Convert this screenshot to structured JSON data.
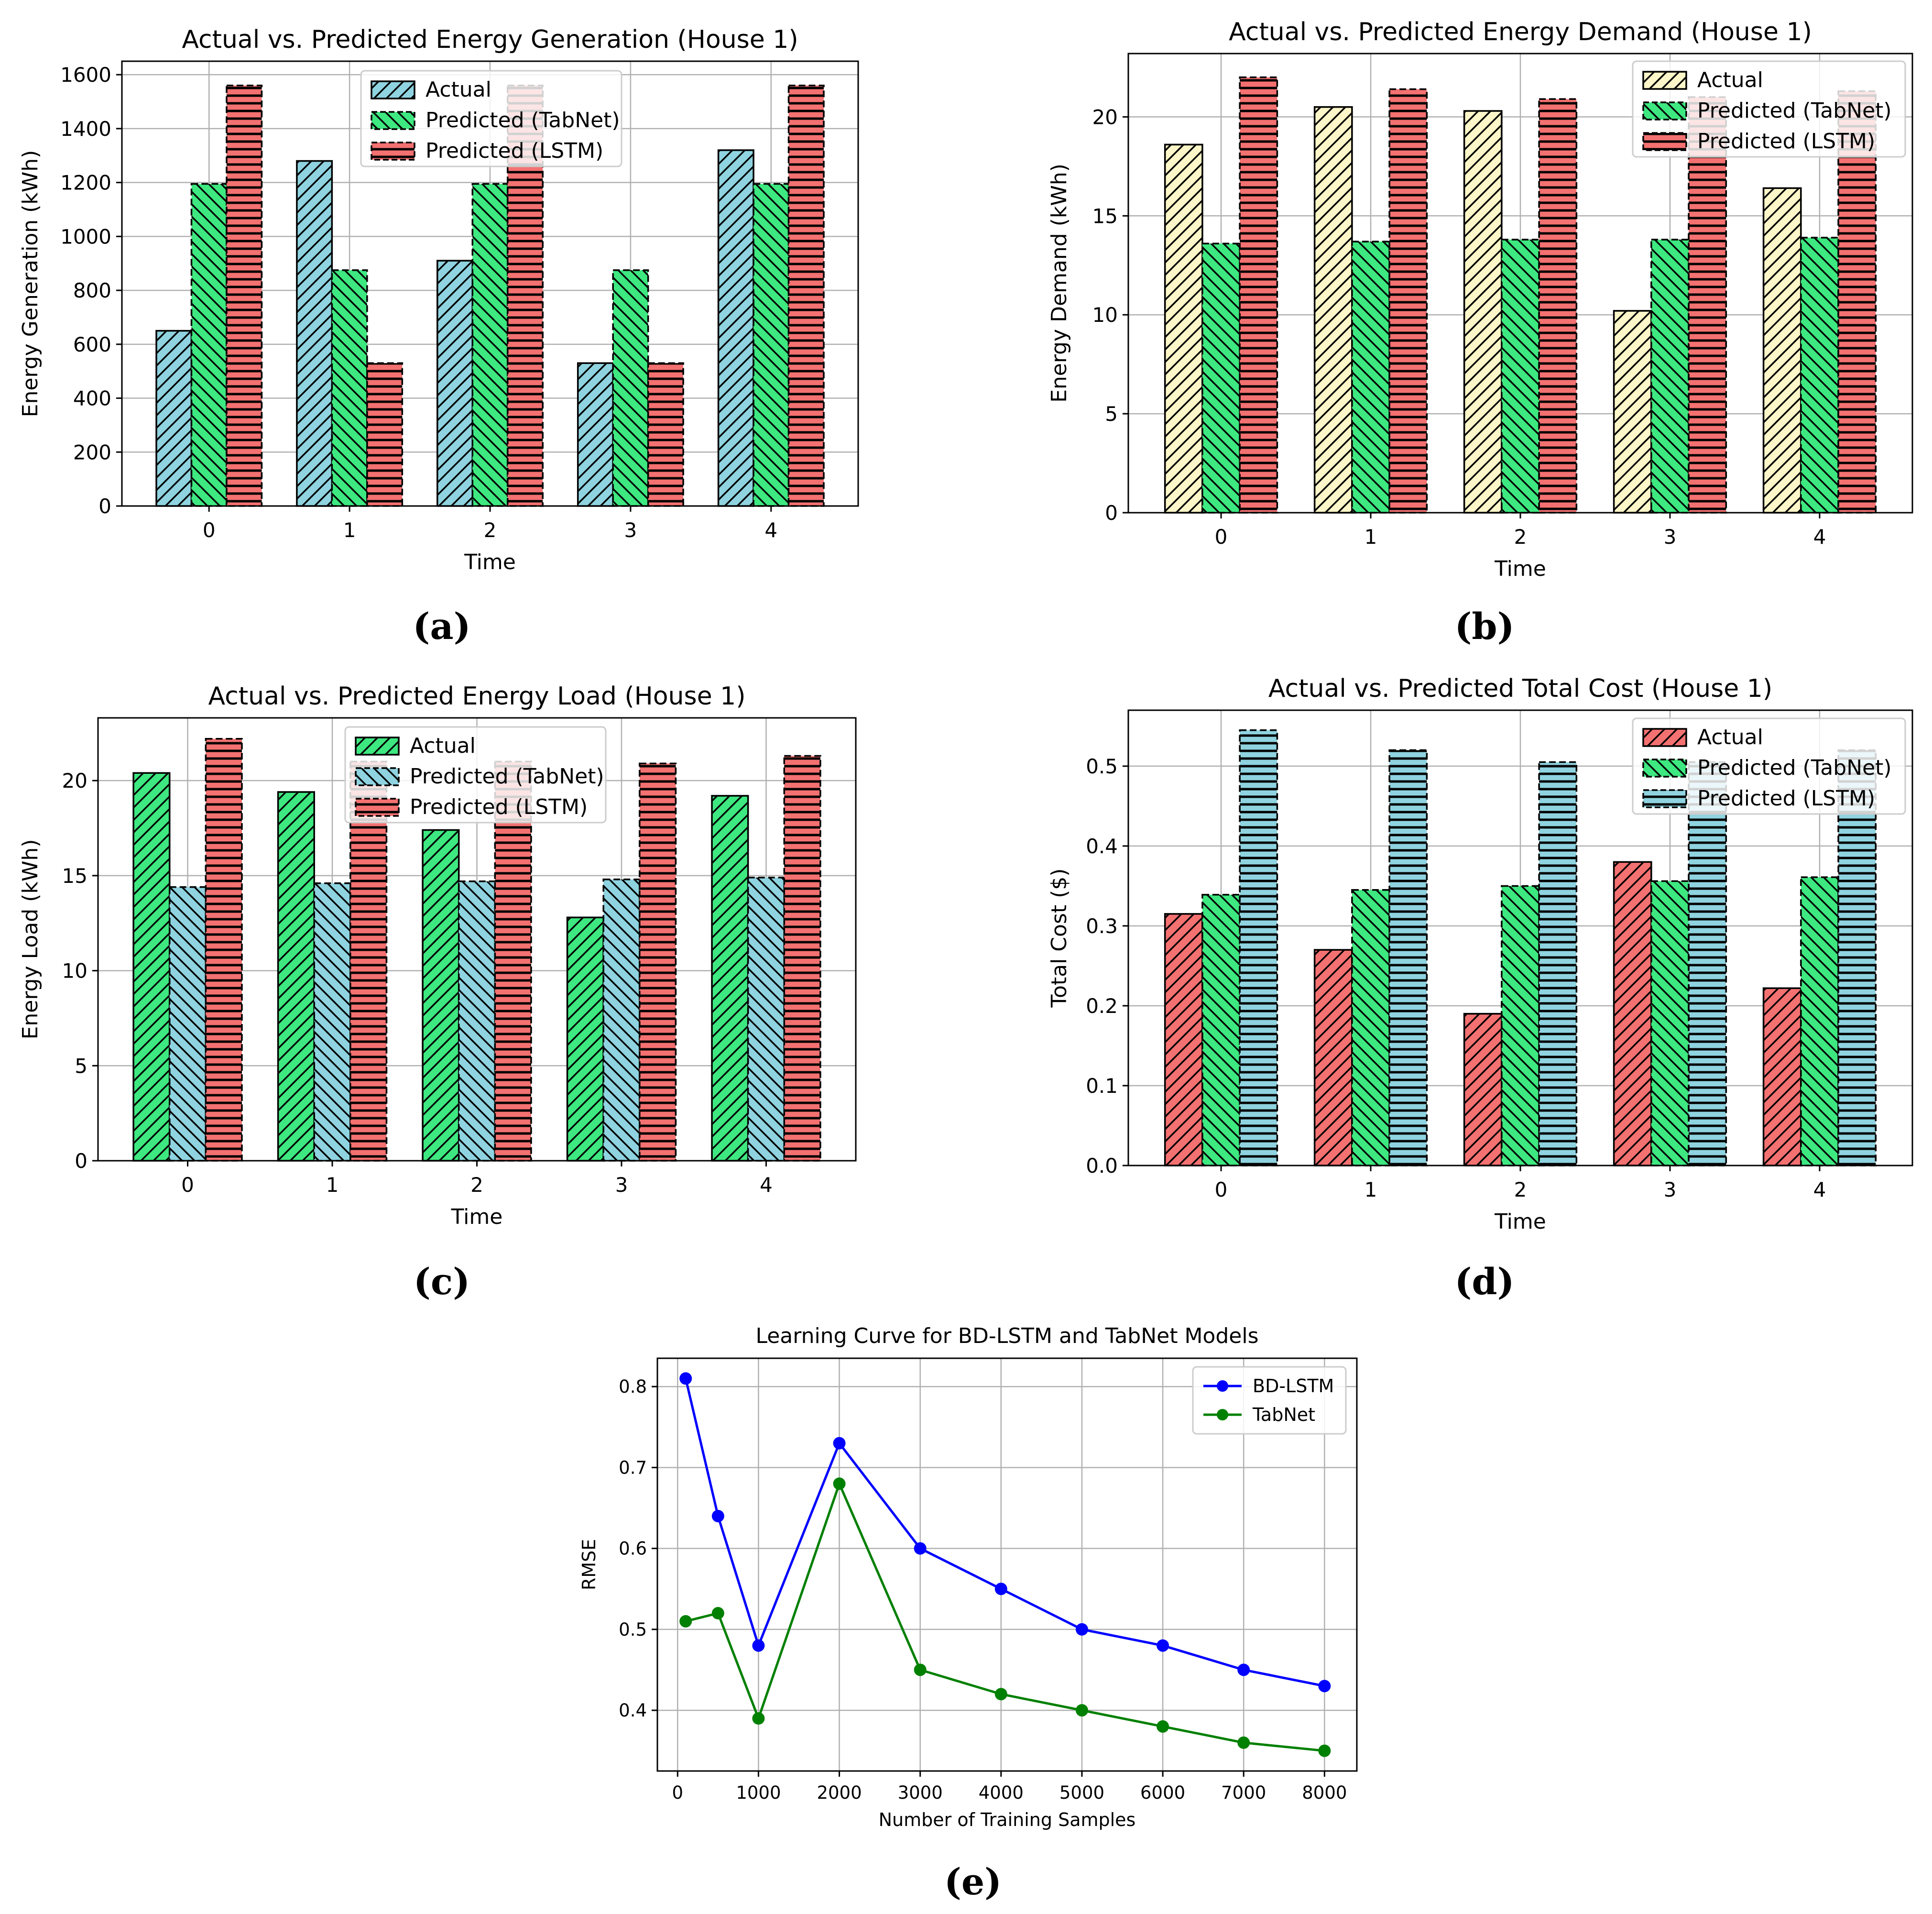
{
  "colors": {
    "sky": "#8fd3e0",
    "green": "#3ee880",
    "red": "#f47171",
    "cream": "#fdf6c8",
    "blue": "#0000ff",
    "darkgreen": "#008000"
  },
  "captions": [
    "(a)",
    "(b)",
    "(c)",
    "(d)",
    "(e)"
  ],
  "chart_data": [
    {
      "type": "bar",
      "title": "Actual vs. Predicted Energy Generation (House 1)",
      "xlabel": "Time",
      "ylabel": "Energy Generation (kWh)",
      "categories": [
        "0",
        "1",
        "2",
        "3",
        "4"
      ],
      "ylim": [
        0,
        1650
      ],
      "yticks": [
        0,
        200,
        400,
        600,
        800,
        1000,
        1200,
        1400,
        1600
      ],
      "legend_position": "top-center",
      "grid": true,
      "series": [
        {
          "name": "Actual",
          "values": [
            650,
            1280,
            910,
            530,
            1320
          ],
          "color": "sky",
          "hatch": "diag-right",
          "dashed": false
        },
        {
          "name": "Predicted (TabNet)",
          "values": [
            1195,
            875,
            1195,
            875,
            1195
          ],
          "color": "green",
          "hatch": "diag-left",
          "dashed": true
        },
        {
          "name": "Predicted (LSTM)",
          "values": [
            1560,
            530,
            1560,
            530,
            1560
          ],
          "color": "red",
          "hatch": "horizontal",
          "dashed": true
        }
      ]
    },
    {
      "type": "bar",
      "title": "Actual vs. Predicted Energy Demand (House 1)",
      "xlabel": "Time",
      "ylabel": "Energy Demand (kWh)",
      "categories": [
        "0",
        "1",
        "2",
        "3",
        "4"
      ],
      "ylim": [
        0,
        23.2
      ],
      "yticks": [
        0,
        5,
        10,
        15,
        20
      ],
      "legend_position": "top-right",
      "grid": true,
      "series": [
        {
          "name": "Actual",
          "values": [
            18.6,
            20.5,
            20.3,
            10.2,
            16.4
          ],
          "color": "cream",
          "hatch": "diag-right",
          "dashed": false
        },
        {
          "name": "Predicted (TabNet)",
          "values": [
            13.6,
            13.7,
            13.8,
            13.8,
            13.9
          ],
          "color": "green",
          "hatch": "diag-left",
          "dashed": true
        },
        {
          "name": "Predicted (LSTM)",
          "values": [
            22.0,
            21.4,
            20.9,
            21.0,
            21.3
          ],
          "color": "red",
          "hatch": "horizontal",
          "dashed": true
        }
      ]
    },
    {
      "type": "bar",
      "title": "Actual vs. Predicted Energy Load (House 1)",
      "xlabel": "Time",
      "ylabel": "Energy Load (kWh)",
      "categories": [
        "0",
        "1",
        "2",
        "3",
        "4"
      ],
      "ylim": [
        0,
        23.3
      ],
      "yticks": [
        0,
        5,
        10,
        15,
        20
      ],
      "legend_position": "top-center",
      "grid": true,
      "series": [
        {
          "name": "Actual",
          "values": [
            20.4,
            19.4,
            17.4,
            12.8,
            19.2
          ],
          "color": "green",
          "hatch": "diag-right",
          "dashed": false
        },
        {
          "name": "Predicted (TabNet)",
          "values": [
            14.4,
            14.6,
            14.7,
            14.8,
            14.9
          ],
          "color": "sky",
          "hatch": "diag-left",
          "dashed": true
        },
        {
          "name": "Predicted (LSTM)",
          "values": [
            22.2,
            21.0,
            21.0,
            20.9,
            21.3
          ],
          "color": "red",
          "hatch": "horizontal",
          "dashed": true
        }
      ]
    },
    {
      "type": "bar",
      "title": "Actual vs. Predicted Total Cost (House 1)",
      "xlabel": "Time",
      "ylabel": "Total Cost ($)",
      "categories": [
        "0",
        "1",
        "2",
        "3",
        "4"
      ],
      "ylim": [
        0,
        0.57
      ],
      "yticks": [
        0.0,
        0.1,
        0.2,
        0.3,
        0.4,
        0.5
      ],
      "ytick_labels": [
        "0.0",
        "0.1",
        "0.2",
        "0.3",
        "0.4",
        "0.5"
      ],
      "legend_position": "top-right",
      "grid": true,
      "series": [
        {
          "name": "Actual",
          "values": [
            0.315,
            0.27,
            0.19,
            0.38,
            0.222
          ],
          "color": "red",
          "hatch": "diag-right",
          "dashed": false
        },
        {
          "name": "Predicted (TabNet)",
          "values": [
            0.339,
            0.345,
            0.35,
            0.356,
            0.361
          ],
          "color": "green",
          "hatch": "diag-left",
          "dashed": true
        },
        {
          "name": "Predicted (LSTM)",
          "values": [
            0.545,
            0.52,
            0.505,
            0.505,
            0.52
          ],
          "color": "sky",
          "hatch": "horizontal",
          "dashed": true
        }
      ]
    },
    {
      "type": "line",
      "title": "Learning Curve for BD-LSTM and TabNet Models",
      "xlabel": "Number of Training Samples",
      "ylabel": "RMSE",
      "x": [
        100,
        500,
        1000,
        2000,
        3000,
        4000,
        5000,
        6000,
        7000,
        8000
      ],
      "xlim": [
        -250,
        8400
      ],
      "ylim": [
        0.325,
        0.835
      ],
      "xticks": [
        0,
        1000,
        2000,
        3000,
        4000,
        5000,
        6000,
        7000,
        8000
      ],
      "yticks": [
        0.4,
        0.5,
        0.6,
        0.7,
        0.8
      ],
      "legend_position": "top-right",
      "grid": true,
      "series": [
        {
          "name": "BD-LSTM",
          "values": [
            0.81,
            0.64,
            0.48,
            0.73,
            0.6,
            0.55,
            0.5,
            0.48,
            0.45,
            0.43
          ],
          "color": "blue"
        },
        {
          "name": "TabNet",
          "values": [
            0.51,
            0.52,
            0.39,
            0.68,
            0.45,
            0.42,
            0.4,
            0.38,
            0.36,
            0.35
          ],
          "color": "darkgreen"
        }
      ]
    }
  ]
}
